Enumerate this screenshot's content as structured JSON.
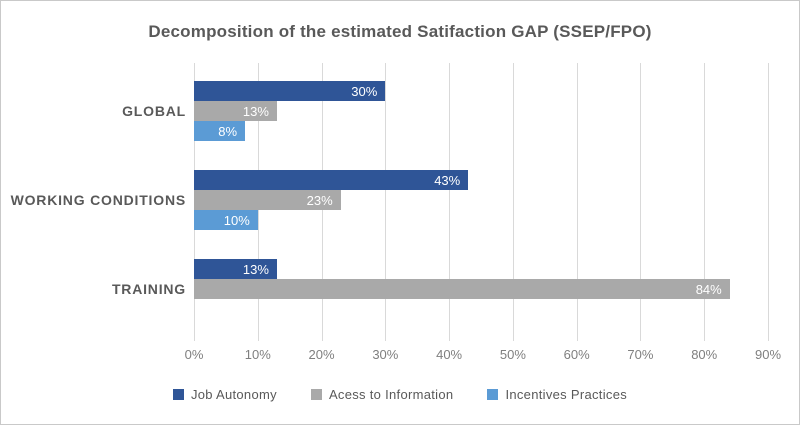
{
  "title": "Decomposition of the estimated Satifaction GAP (SSEP/FPO)",
  "colors": {
    "title_text": "#595959",
    "category_text": "#595959",
    "tick_text": "#7f7f7f",
    "legend_text": "#595959",
    "gridline": "#d9d9d9",
    "bar_label_text": "#ffffff",
    "frame_border": "#c9c9c9",
    "background": "#ffffff"
  },
  "chart_data": {
    "type": "bar",
    "orientation": "horizontal",
    "title": "Decomposition of the estimated Satifaction GAP (SSEP/FPO)",
    "categories": [
      "GLOBAL",
      "WORKING CONDITIONS",
      "TRAINING"
    ],
    "series": [
      {
        "name": "Job Autonomy",
        "color": "#2f5597",
        "values": [
          30,
          43,
          13
        ]
      },
      {
        "name": "Acess to Information",
        "color": "#a9a9a9",
        "values": [
          13,
          23,
          84
        ]
      },
      {
        "name": "Incentives Practices",
        "color": "#5b9bd5",
        "values": [
          8,
          10,
          null
        ]
      }
    ],
    "value_suffix": "%",
    "xlim": [
      0,
      90
    ],
    "xticks": [
      "0%",
      "10%",
      "20%",
      "30%",
      "40%",
      "50%",
      "60%",
      "70%",
      "80%",
      "90%"
    ],
    "grid": "vertical",
    "data_labels": "inside-end",
    "legend_position": "bottom"
  }
}
